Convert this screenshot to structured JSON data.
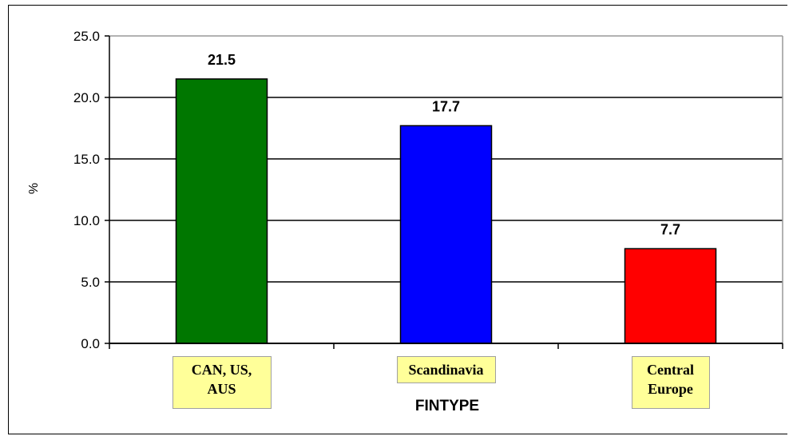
{
  "chart_data": {
    "type": "bar",
    "categories": [
      "CAN, US, AUS",
      "Scandinavia",
      "Central Europe"
    ],
    "category_lines": [
      [
        "CAN, US,",
        "AUS"
      ],
      [
        "Scandinavia"
      ],
      [
        "Central",
        "Europe"
      ]
    ],
    "values": [
      21.5,
      17.7,
      7.7
    ],
    "data_labels": [
      "21.5",
      "17.7",
      "7.7"
    ],
    "colors": [
      "#007700",
      "#0000ff",
      "#ff0000"
    ],
    "title": "",
    "xlabel": "FINTYPE",
    "ylabel": "%",
    "ylim": [
      0,
      25
    ],
    "yticks": [
      "0.0",
      "5.0",
      "10.0",
      "15.0",
      "20.0",
      "25.0"
    ],
    "grid": true,
    "legend": "none",
    "category_label_background": "#ffff99"
  }
}
